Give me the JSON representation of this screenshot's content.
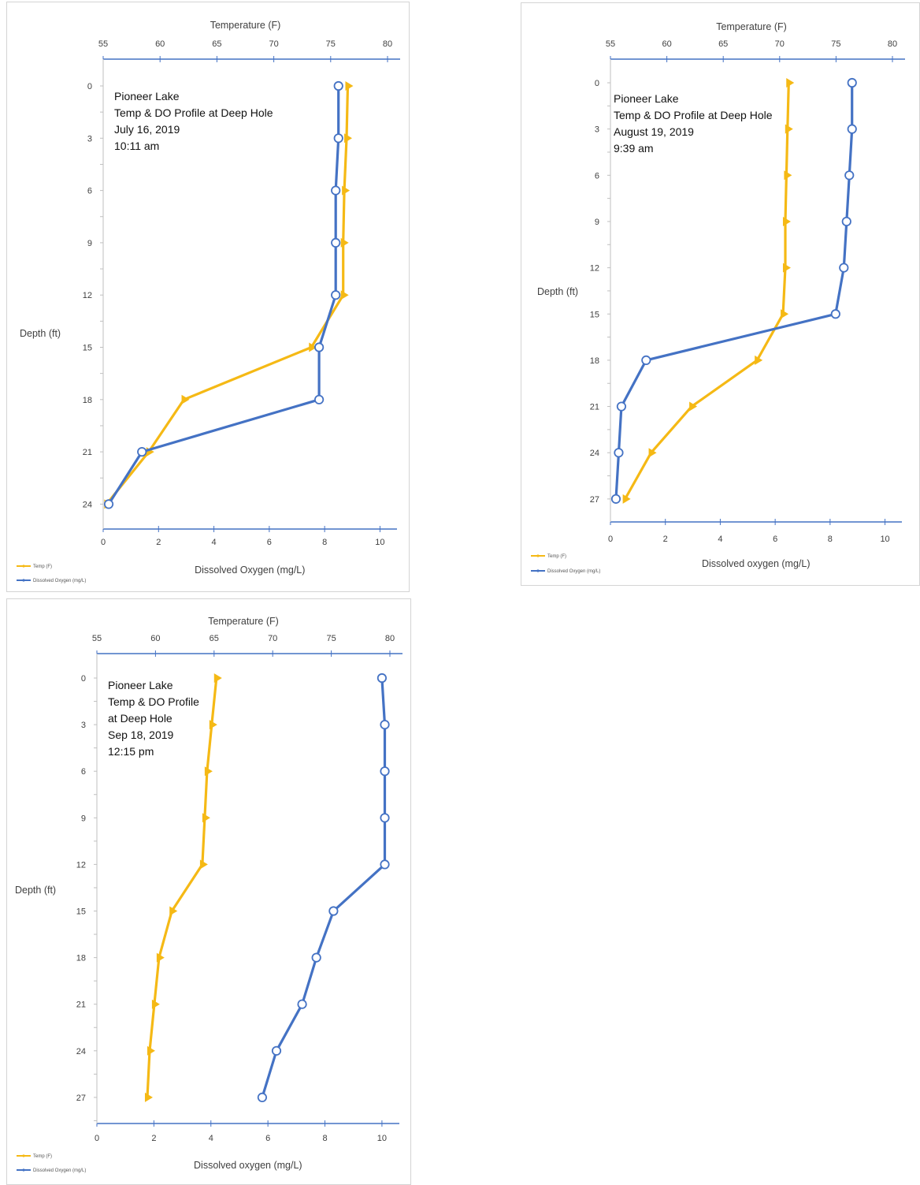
{
  "colors": {
    "temp": "#f5b915",
    "do": "#4472c4",
    "axis": "#4472c4"
  },
  "chart_data": [
    {
      "type": "line",
      "annotation": [
        "Pioneer Lake",
        "Temp & DO Profile at Deep Hole",
        "July 16, 2019",
        "10:11 am"
      ],
      "ylabel": "Depth (ft)",
      "top_axis_label": "Temperature (F)",
      "bottom_axis_label": "Dissolved Oxygen (mg/L)",
      "depth_ticks": [
        0,
        3,
        6,
        9,
        12,
        15,
        18,
        21,
        24
      ],
      "temp_ticks": [
        55,
        60,
        65,
        70,
        75,
        80
      ],
      "do_ticks": [
        0,
        2,
        4,
        6,
        8,
        10
      ],
      "depth_range": [
        0,
        24
      ],
      "temp_range": [
        55,
        80
      ],
      "do_range": [
        0,
        10.5
      ],
      "series": [
        {
          "name": "Temp (F)",
          "axis": "temperature",
          "depth": [
            0,
            3,
            6,
            9,
            12,
            15,
            18,
            21,
            24
          ],
          "values": [
            76.5,
            76.4,
            76.2,
            76.1,
            76.1,
            73.3,
            62.1,
            59.0,
            55.3
          ]
        },
        {
          "name": "Dissolved Oxygen (mg/L)",
          "axis": "dissolved_oxygen",
          "depth": [
            0,
            3,
            6,
            9,
            12,
            15,
            18,
            21,
            24
          ],
          "values": [
            8.5,
            8.5,
            8.4,
            8.4,
            8.4,
            7.8,
            7.8,
            1.4,
            0.2
          ]
        }
      ]
    },
    {
      "type": "line",
      "annotation": [
        "Pioneer Lake",
        "Temp & DO Profile at Deep Hole",
        "August 19, 2019",
        "9:39 am"
      ],
      "ylabel": "Depth (ft)",
      "top_axis_label": "Temperature (F)",
      "bottom_axis_label": "Dissolved oxygen (mg/L)",
      "depth_ticks": [
        0,
        3,
        6,
        9,
        12,
        15,
        18,
        21,
        24,
        27
      ],
      "temp_ticks": [
        55,
        60,
        65,
        70,
        75,
        80
      ],
      "do_ticks": [
        0,
        2,
        4,
        6,
        8,
        10
      ],
      "depth_range": [
        0,
        27
      ],
      "temp_range": [
        55,
        80
      ],
      "do_range": [
        0,
        10.5
      ],
      "series": [
        {
          "name": "Temp (F)",
          "axis": "temperature",
          "depth": [
            0,
            3,
            6,
            9,
            12,
            15,
            18,
            21,
            24,
            27
          ],
          "values": [
            70.8,
            70.7,
            70.6,
            70.5,
            70.5,
            70.3,
            68.0,
            62.2,
            58.6,
            56.3
          ]
        },
        {
          "name": "Dissolved Oxygen (mg/L)",
          "axis": "dissolved_oxygen",
          "depth": [
            0,
            3,
            6,
            9,
            12,
            15,
            18,
            21,
            24,
            27
          ],
          "values": [
            8.8,
            8.8,
            8.7,
            8.6,
            8.5,
            8.2,
            1.3,
            0.4,
            0.3,
            0.2
          ]
        }
      ]
    },
    {
      "type": "line",
      "annotation": [
        "Pioneer Lake",
        "Temp & DO Profile",
        "at Deep Hole",
        "Sep 18, 2019",
        "12:15 pm"
      ],
      "ylabel": "Depth (ft)",
      "top_axis_label": "Temperature (F)",
      "bottom_axis_label": "Dissolved oxygen (mg/L)",
      "depth_ticks": [
        0,
        3,
        6,
        9,
        12,
        15,
        18,
        21,
        24,
        27
      ],
      "temp_ticks": [
        55,
        60,
        65,
        70,
        75,
        80
      ],
      "do_ticks": [
        0,
        2,
        4,
        6,
        8,
        10
      ],
      "depth_range": [
        0,
        27
      ],
      "temp_range": [
        55,
        80
      ],
      "do_range": [
        0,
        10.5
      ],
      "series": [
        {
          "name": "Temp (F)",
          "axis": "temperature",
          "depth": [
            0,
            3,
            6,
            9,
            12,
            15,
            18,
            21,
            24,
            27
          ],
          "values": [
            65.2,
            64.8,
            64.4,
            64.2,
            64.0,
            61.4,
            60.3,
            59.9,
            59.5,
            59.3
          ]
        },
        {
          "name": "Dissolved Oxygen (mg/L)",
          "axis": "dissolved_oxygen",
          "depth": [
            0,
            3,
            6,
            9,
            12,
            15,
            18,
            21,
            24,
            27
          ],
          "values": [
            10.0,
            10.1,
            10.1,
            10.1,
            10.1,
            8.3,
            7.7,
            7.2,
            6.3,
            5.8
          ]
        }
      ]
    }
  ]
}
